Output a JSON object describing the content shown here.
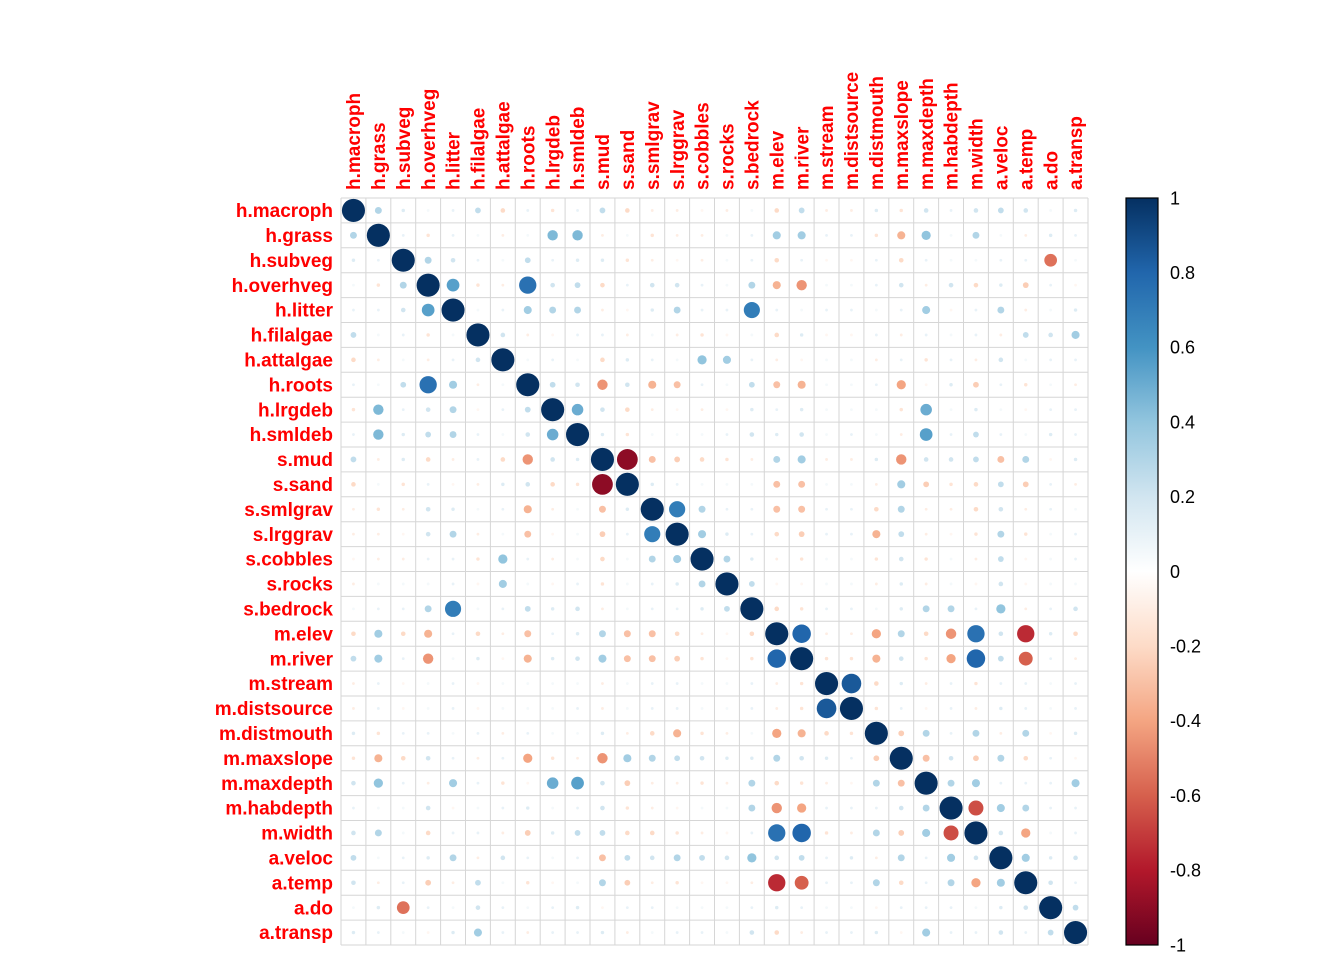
{
  "chart_data": {
    "type": "heatmap",
    "subtype": "correlogram-circles",
    "title": "",
    "variables": [
      "h.macroph",
      "h.grass",
      "h.subveg",
      "h.overhveg",
      "h.litter",
      "h.filalgae",
      "h.attalgae",
      "h.roots",
      "h.lrgdeb",
      "h.smldeb",
      "s.mud",
      "s.sand",
      "s.smlgrav",
      "s.lrggrav",
      "s.cobbles",
      "s.rocks",
      "s.bedrock",
      "m.elev",
      "m.river",
      "m.stream",
      "m.distsource",
      "m.distmouth",
      "m.maxslope",
      "m.maxdepth",
      "m.habdepth",
      "m.width",
      "a.veloc",
      "a.temp",
      "a.do",
      "a.transp"
    ],
    "diagonal": 1,
    "upper_triangle": [
      [
        0.3,
        0.15,
        0.05,
        0.1,
        0.25,
        -0.2,
        0.1,
        -0.15,
        0.1,
        0.25,
        -0.2,
        -0.1,
        -0.1,
        -0.05,
        -0.1,
        0.05,
        -0.2,
        0.25,
        -0.1,
        -0.1,
        0.15,
        -0.15,
        0.2,
        0.1,
        0.2,
        0.25,
        0.2,
        0.05,
        0.15
      ],
      [
        0.1,
        -0.15,
        0.1,
        0.05,
        -0.1,
        0.05,
        0.45,
        0.45,
        -0.1,
        0.05,
        -0.15,
        -0.1,
        -0.1,
        0.05,
        0.1,
        0.35,
        0.35,
        0.1,
        0.1,
        -0.15,
        -0.35,
        0.4,
        0.05,
        0.3,
        0.05,
        -0.1,
        0.15,
        0.1
      ],
      [
        0.3,
        0.2,
        0.1,
        0.05,
        0.25,
        0.1,
        0.15,
        0.15,
        -0.15,
        -0.1,
        -0.05,
        -0.1,
        0.05,
        0.1,
        -0.2,
        0.1,
        -0.05,
        -0.05,
        0.1,
        -0.2,
        0.1,
        0.05,
        0.05,
        0.1,
        0.1,
        -0.55,
        0.05
      ],
      [
        0.55,
        -0.15,
        -0.1,
        0.75,
        0.2,
        0.25,
        -0.2,
        0.1,
        0.2,
        0.2,
        0.1,
        0.05,
        0.3,
        -0.35,
        -0.45,
        0.05,
        0.05,
        0.1,
        0.2,
        -0.1,
        0.2,
        -0.2,
        0.15,
        -0.25,
        0.1,
        -0.05
      ],
      [
        0.05,
        0.1,
        0.35,
        0.3,
        0.3,
        -0.1,
        -0.05,
        0.15,
        0.3,
        0.1,
        0.1,
        0.7,
        0.1,
        0.05,
        0.1,
        0.1,
        0.05,
        0.1,
        0.35,
        -0.05,
        0.1,
        0.3,
        -0.1,
        0.05,
        0.15
      ],
      [
        0.2,
        -0.1,
        -0.05,
        0.1,
        0.1,
        -0.1,
        0.05,
        -0.1,
        -0.15,
        -0.05,
        0.05,
        -0.2,
        0.15,
        -0.05,
        -0.05,
        0.1,
        -0.1,
        0.1,
        0.05,
        0.1,
        -0.1,
        0.25,
        0.2,
        0.35
      ],
      [
        0.05,
        0.1,
        0.05,
        -0.2,
        0.15,
        0.1,
        0.05,
        0.4,
        0.35,
        0.1,
        -0.1,
        -0.05,
        0.05,
        0.05,
        -0.1,
        0.1,
        -0.15,
        0.1,
        -0.1,
        0.2,
        0.05,
        0.1,
        0.1
      ],
      [
        0.25,
        0.2,
        -0.45,
        0.2,
        -0.35,
        -0.3,
        0.1,
        0.05,
        0.25,
        -0.3,
        -0.35,
        0.05,
        0.05,
        0.1,
        -0.4,
        -0.05,
        0.15,
        -0.25,
        0.1,
        -0.15,
        0.05,
        -0.1
      ],
      [
        0.5,
        0.2,
        -0.2,
        -0.1,
        -0.05,
        -0.1,
        -0.05,
        0.15,
        0.1,
        0.15,
        0.05,
        0.05,
        0.05,
        -0.15,
        0.5,
        0.05,
        0.15,
        0.05,
        -0.05,
        0.1,
        0.1
      ],
      [
        0.15,
        -0.15,
        0.05,
        0.05,
        0.05,
        0.1,
        0.2,
        0.15,
        0.2,
        0.05,
        0.1,
        0.05,
        -0.1,
        0.55,
        0.1,
        0.25,
        0.1,
        0.05,
        0.15,
        0.1
      ],
      [
        -0.9,
        -0.3,
        -0.25,
        -0.2,
        -0.15,
        -0.1,
        0.3,
        0.35,
        -0.1,
        -0.1,
        0.15,
        -0.45,
        0.2,
        0.2,
        0.25,
        -0.3,
        0.3,
        -0.05,
        0.15
      ],
      [
        0.15,
        0.1,
        0.05,
        0.05,
        0.05,
        -0.3,
        -0.3,
        0.05,
        0.05,
        -0.1,
        0.35,
        -0.25,
        -0.15,
        -0.2,
        0.25,
        -0.25,
        0.1,
        -0.1
      ],
      [
        0.7,
        0.3,
        0.1,
        0.1,
        -0.3,
        -0.3,
        0.1,
        0.1,
        -0.2,
        0.3,
        -0.1,
        -0.1,
        -0.2,
        0.2,
        -0.1,
        0.1,
        0.05
      ],
      [
        0.35,
        0.15,
        0.1,
        -0.2,
        -0.25,
        0.1,
        0.1,
        -0.35,
        0.25,
        -0.1,
        -0.05,
        -0.15,
        0.3,
        -0.15,
        0.05,
        0.1
      ],
      [
        0.3,
        0.15,
        -0.1,
        -0.15,
        0.05,
        0.05,
        -0.15,
        0.2,
        -0.15,
        0.05,
        -0.1,
        0.25,
        -0.05,
        0.05,
        0.1
      ],
      [
        0.25,
        -0.05,
        -0.05,
        0.05,
        0.05,
        -0.1,
        0.15,
        -0.1,
        0.05,
        -0.05,
        0.2,
        -0.05,
        0.05,
        0.05
      ],
      [
        -0.2,
        -0.15,
        0.1,
        0.1,
        0.05,
        0.15,
        0.3,
        0.3,
        0.1,
        0.4,
        -0.1,
        0.1,
        0.2
      ],
      [
        0.8,
        -0.1,
        -0.1,
        -0.4,
        0.3,
        -0.2,
        -0.45,
        0.75,
        0.2,
        -0.75,
        0.15,
        -0.2
      ],
      [
        -0.15,
        -0.15,
        -0.35,
        0.2,
        -0.15,
        -0.4,
        0.8,
        0.25,
        -0.6,
        0.1,
        -0.1
      ],
      [
        0.85,
        -0.2,
        0.15,
        -0.1,
        0.1,
        -0.15,
        0.1,
        0.1,
        0.05,
        0.1
      ],
      [
        -0.15,
        0.1,
        -0.05,
        0.1,
        -0.1,
        0.15,
        0.1,
        0.05,
        0.1
      ],
      [
        -0.25,
        0.3,
        0.1,
        0.3,
        -0.1,
        0.3,
        -0.05,
        0.15
      ],
      [
        -0.3,
        0.2,
        -0.25,
        0.3,
        -0.2,
        0.1,
        -0.05
      ],
      [
        0.3,
        0.35,
        0.1,
        0.1,
        0.1,
        0.35
      ],
      [
        -0.65,
        0.35,
        0.3,
        0.1,
        0.1
      ],
      [
        0.2,
        -0.4,
        0.05,
        0.1
      ],
      [
        0.35,
        0.15,
        0.2
      ],
      [
        0.2,
        0.1
      ],
      [
        0.25
      ]
    ],
    "value_range": [
      -1,
      1
    ],
    "colorbar_ticks": [
      "1",
      "0.8",
      "0.6",
      "0.4",
      "0.2",
      "0",
      "-0.2",
      "-0.4",
      "-0.6",
      "-0.8",
      "-1"
    ],
    "palette_neg_to_pos": [
      "#67001F",
      "#B2182B",
      "#D6604D",
      "#F4A582",
      "#FDDBC7",
      "#FFFFFF",
      "#D1E5F0",
      "#92C5DE",
      "#4393C3",
      "#2166AC",
      "#053061"
    ],
    "text_label_color": "#FF0000",
    "tick_label_color": "#000000",
    "grid_color": "#D6D6D6",
    "legend_position": "right",
    "grid": true
  }
}
